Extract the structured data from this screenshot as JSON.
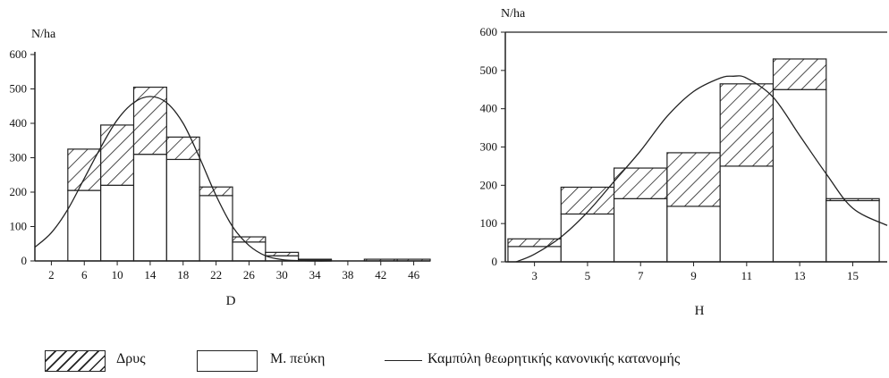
{
  "legend": {
    "oak": "Δρυς",
    "pine": "Μ. πεύκη",
    "curve": "Καμπύλη θεωρητικής κανονικής κατανομής"
  },
  "colors": {
    "line": "#222222",
    "pine_fill": "#ffffff",
    "background": "#ffffff"
  },
  "chart_data": [
    {
      "type": "bar",
      "stacked": true,
      "ylabel": "N/ha",
      "xlabel": "D",
      "ylim": [
        0,
        600
      ],
      "yticks": [
        0,
        100,
        200,
        300,
        400,
        500,
        600
      ],
      "xticks": [
        "2",
        "6",
        "10",
        "14",
        "18",
        "22",
        "26",
        "30",
        "34",
        "38",
        "42",
        "46"
      ],
      "xrange": [
        0,
        48
      ],
      "bin_width": 4,
      "categories": [
        "6",
        "10",
        "14",
        "18",
        "22",
        "26",
        "30",
        "34",
        "38",
        "42",
        "46"
      ],
      "series": [
        {
          "name": "Μ. πεύκη",
          "values": [
            205,
            220,
            310,
            295,
            190,
            55,
            15,
            3,
            0,
            0,
            0
          ]
        },
        {
          "name": "Δρυς",
          "values": [
            120,
            175,
            195,
            65,
            25,
            15,
            10,
            2,
            0,
            5,
            5
          ]
        }
      ],
      "curve": {
        "name": "Καμπύλη θεωρητικής κανονικής κατανομής",
        "x": [
          0,
          2,
          4,
          6,
          8,
          10,
          12,
          14,
          16,
          18,
          20,
          22,
          24,
          26,
          28,
          30,
          32,
          34,
          36
        ],
        "y": [
          40,
          82,
          150,
          240,
          330,
          410,
          460,
          478,
          460,
          400,
          300,
          190,
          100,
          45,
          15,
          4,
          1,
          0,
          0
        ]
      }
    },
    {
      "type": "bar",
      "stacked": true,
      "ylabel": "N/ha",
      "xlabel": "H",
      "ylim": [
        0,
        600
      ],
      "yticks": [
        0,
        100,
        200,
        300,
        400,
        500,
        600
      ],
      "xticks": [
        "3",
        "5",
        "7",
        "9",
        "11",
        "13",
        "15"
      ],
      "xrange": [
        1.9,
        16.3
      ],
      "bin_width": 2,
      "categories": [
        "3",
        "5",
        "7",
        "9",
        "11",
        "13",
        "15"
      ],
      "series": [
        {
          "name": "Μ. πεύκη",
          "values": [
            40,
            125,
            165,
            145,
            250,
            450,
            160
          ]
        },
        {
          "name": "Δρυς",
          "values": [
            20,
            70,
            80,
            140,
            215,
            80,
            5
          ]
        }
      ],
      "curve": {
        "name": "Καμπύλη θεωρητικής κανονικής κατανομής",
        "x": [
          2.3,
          3,
          4,
          5,
          6,
          7,
          8,
          9,
          10,
          10.5,
          11,
          12,
          13,
          14,
          15,
          16.3
        ],
        "y": [
          0,
          20,
          65,
          130,
          210,
          290,
          380,
          445,
          480,
          485,
          480,
          430,
          330,
          230,
          140,
          95
        ]
      }
    }
  ]
}
